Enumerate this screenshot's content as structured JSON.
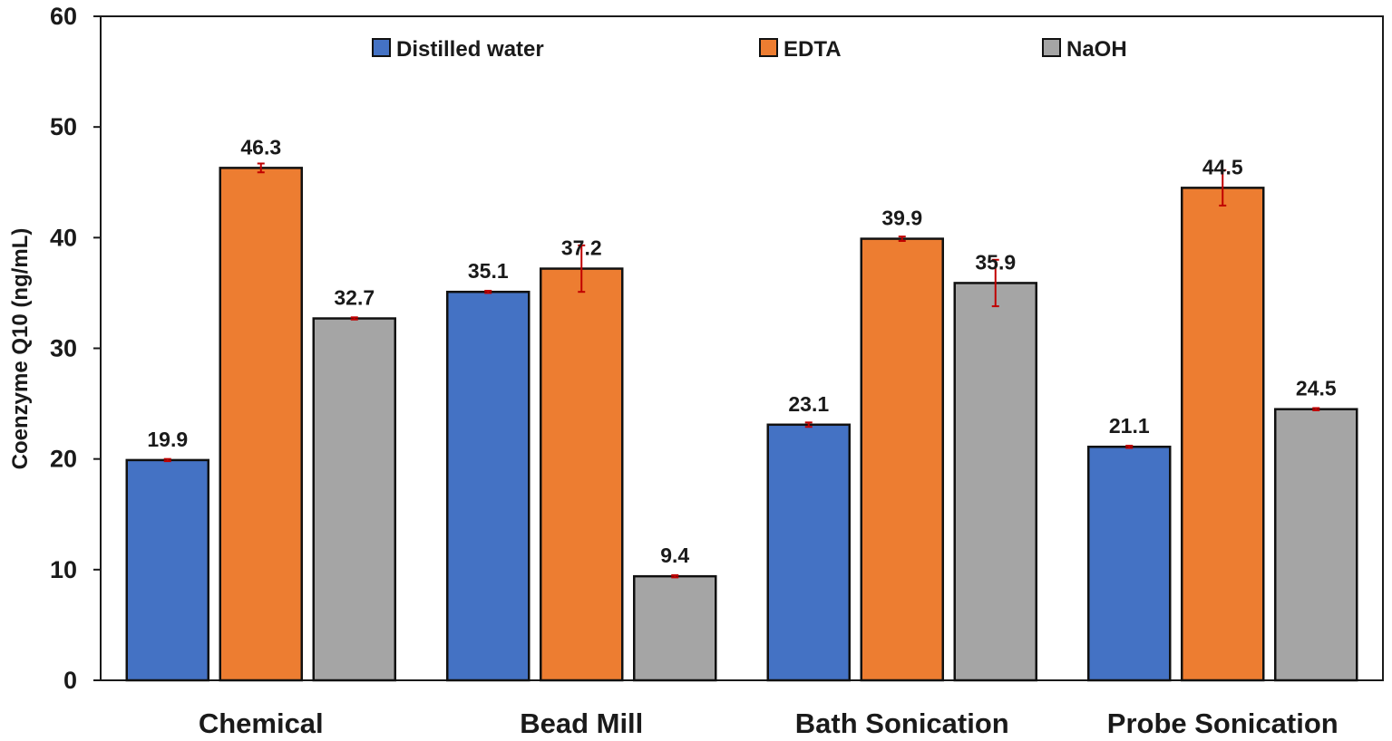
{
  "chart_data": {
    "type": "bar",
    "title": "",
    "xlabel": "",
    "ylabel": "Coenzyme Q10 (ng/mL)",
    "ylim": [
      0,
      60
    ],
    "yticks": [
      0,
      10,
      20,
      30,
      40,
      50,
      60
    ],
    "grid": false,
    "legend_position": "top",
    "categories": [
      "Chemical",
      "Bead Mill",
      "Bath Sonication",
      "Probe Sonication"
    ],
    "series": [
      {
        "name": "Distilled water",
        "color": "#4472C4",
        "values": [
          19.9,
          35.1,
          23.1,
          21.1
        ],
        "labels": [
          "19.9",
          "35.1",
          "23.1",
          "21.1"
        ],
        "errors": [
          0.1,
          0.1,
          0.2,
          0.1
        ]
      },
      {
        "name": "EDTA",
        "color": "#ED7D31",
        "values": [
          46.3,
          37.2,
          39.9,
          44.5
        ],
        "labels": [
          "46.3",
          "37.2",
          "39.9",
          "44.5"
        ],
        "errors": [
          0.4,
          2.1,
          0.2,
          1.6
        ]
      },
      {
        "name": "NaOH",
        "color": "#A5A5A5",
        "values": [
          32.7,
          9.4,
          35.9,
          24.5
        ],
        "labels": [
          "32.7",
          "9.4",
          "35.9",
          "24.5"
        ],
        "errors": [
          0.1,
          0.1,
          2.1,
          0.1
        ]
      }
    ],
    "error_bar_color": "#C00000"
  }
}
